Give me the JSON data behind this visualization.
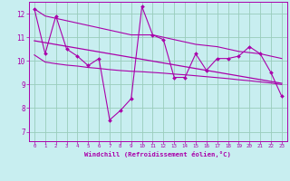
{
  "main_line": [
    12.2,
    10.3,
    11.9,
    10.5,
    10.2,
    9.8,
    10.1,
    7.5,
    7.9,
    8.4,
    12.3,
    11.1,
    10.9,
    9.3,
    9.3,
    10.3,
    9.6,
    10.1,
    10.1,
    10.2,
    10.6,
    10.3,
    9.5,
    8.5
  ],
  "upper_line": [
    12.2,
    11.9,
    11.8,
    11.7,
    11.6,
    11.5,
    11.4,
    11.3,
    11.2,
    11.1,
    11.1,
    11.1,
    11.0,
    10.9,
    10.8,
    10.7,
    10.65,
    10.6,
    10.5,
    10.4,
    10.35,
    10.3,
    10.2,
    10.1
  ],
  "lower_line": [
    10.25,
    9.95,
    9.88,
    9.82,
    9.78,
    9.72,
    9.68,
    9.63,
    9.59,
    9.56,
    9.54,
    9.51,
    9.48,
    9.44,
    9.41,
    9.37,
    9.33,
    9.29,
    9.25,
    9.2,
    9.16,
    9.11,
    9.06,
    9.0
  ],
  "regression_line": [
    [
      0,
      10.85
    ],
    [
      23,
      9.05
    ]
  ],
  "x_labels": [
    "0",
    "1",
    "2",
    "3",
    "4",
    "5",
    "6",
    "7",
    "8",
    "9",
    "10",
    "11",
    "12",
    "13",
    "14",
    "15",
    "16",
    "17",
    "18",
    "19",
    "20",
    "21",
    "22",
    "23"
  ],
  "y_ticks": [
    7,
    8,
    9,
    10,
    11,
    12
  ],
  "ylim": [
    6.6,
    12.5
  ],
  "xlim": [
    -0.5,
    23.5
  ],
  "line_color": "#aa00aa",
  "bg_color": "#c8eef0",
  "grid_color": "#99ccbb",
  "xlabel": "Windchill (Refroidissement éolien,°C)",
  "xlabel_color": "#aa00aa",
  "tick_color": "#aa00aa"
}
